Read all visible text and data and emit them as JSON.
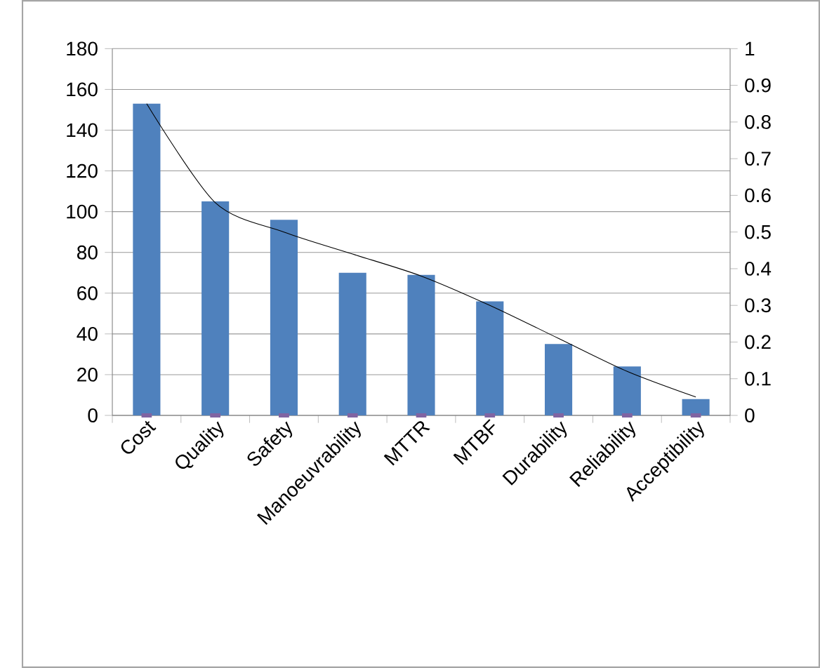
{
  "chart_data": {
    "type": "bar",
    "categories": [
      "Cost",
      "Quality",
      "Safety",
      "Manoeuvrability",
      "MTTR",
      "MTBF",
      "Durability",
      "Reliability",
      "Acceptibility"
    ],
    "series": [
      {
        "color": "#4f81bd",
        "values": [
          153,
          105,
          96,
          70,
          69,
          56,
          35,
          24,
          8
        ]
      },
      {
        "type": "line",
        "axis": "y2",
        "color": "#000000",
        "values": [
          0.85,
          0.58,
          0.5,
          0.44,
          0.38,
          0.3,
          0.21,
          0.12,
          0.05
        ]
      },
      {
        "type": "scatter",
        "color": "#8064a2",
        "marker": "square",
        "values": [
          0,
          0,
          0,
          0,
          0,
          0,
          0,
          0,
          0
        ]
      }
    ],
    "ylim": [
      0,
      180
    ],
    "yticks": [
      0,
      20,
      40,
      60,
      80,
      100,
      120,
      140,
      160,
      180
    ],
    "y2lim": [
      0,
      1
    ],
    "y2ticks": [
      0,
      0.1,
      0.2,
      0.3,
      0.4,
      0.5,
      0.6,
      0.7,
      0.8,
      0.9,
      1
    ],
    "grid": "y"
  }
}
